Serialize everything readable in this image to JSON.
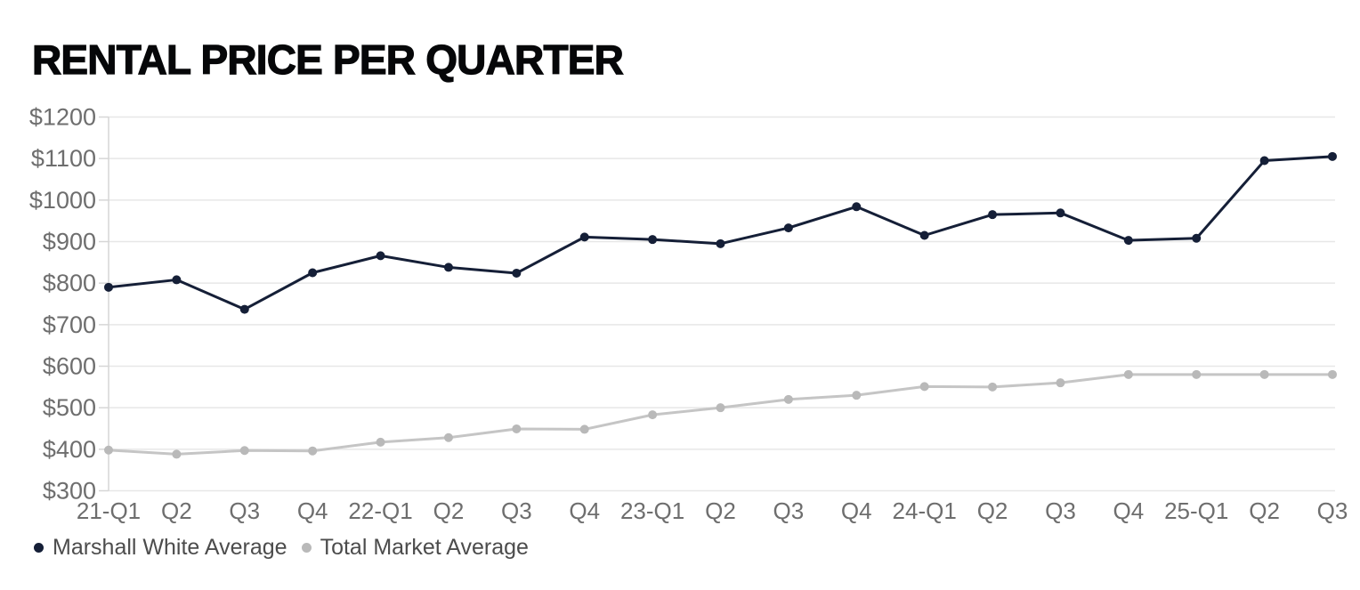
{
  "title": "RENTAL PRICE PER QUARTER",
  "chart_data": {
    "type": "line",
    "title": "RENTAL PRICE PER QUARTER",
    "categories": [
      "21-Q1",
      "Q2",
      "Q3",
      "Q4",
      "22-Q1",
      "Q2",
      "Q3",
      "Q4",
      "23-Q1",
      "Q2",
      "Q3",
      "Q4",
      "24-Q1",
      "Q2",
      "Q3",
      "Q4",
      "25-Q1",
      "Q2",
      "Q3"
    ],
    "series": [
      {
        "name": "Marshall White Average",
        "color": "#151f37",
        "marker_color": "#151f37",
        "values": [
          790,
          808,
          737,
          825,
          866,
          838,
          824,
          911,
          905,
          895,
          933,
          984,
          915,
          965,
          969,
          903,
          908,
          1095,
          1105
        ]
      },
      {
        "name": "Total Market Average",
        "color": "#c5c5c5",
        "marker_color": "#b9b9b9",
        "values": [
          398,
          388,
          397,
          396,
          417,
          428,
          449,
          448,
          483,
          500,
          520,
          530,
          551,
          550,
          560,
          580,
          580,
          580,
          580
        ]
      }
    ],
    "xlabel": "",
    "ylabel": "",
    "ylim": [
      300,
      1200
    ],
    "ytick_step": 100,
    "ytick_prefix": "$",
    "grid": "horizontal",
    "legend_position": "bottom-left"
  },
  "style": {
    "grid_color": "#e7e7e7",
    "axis_color": "#d6d6d6",
    "tick_label_color": "#6e6e6e",
    "legend_text_color": "#4c4c4c",
    "background": "#ffffff"
  }
}
